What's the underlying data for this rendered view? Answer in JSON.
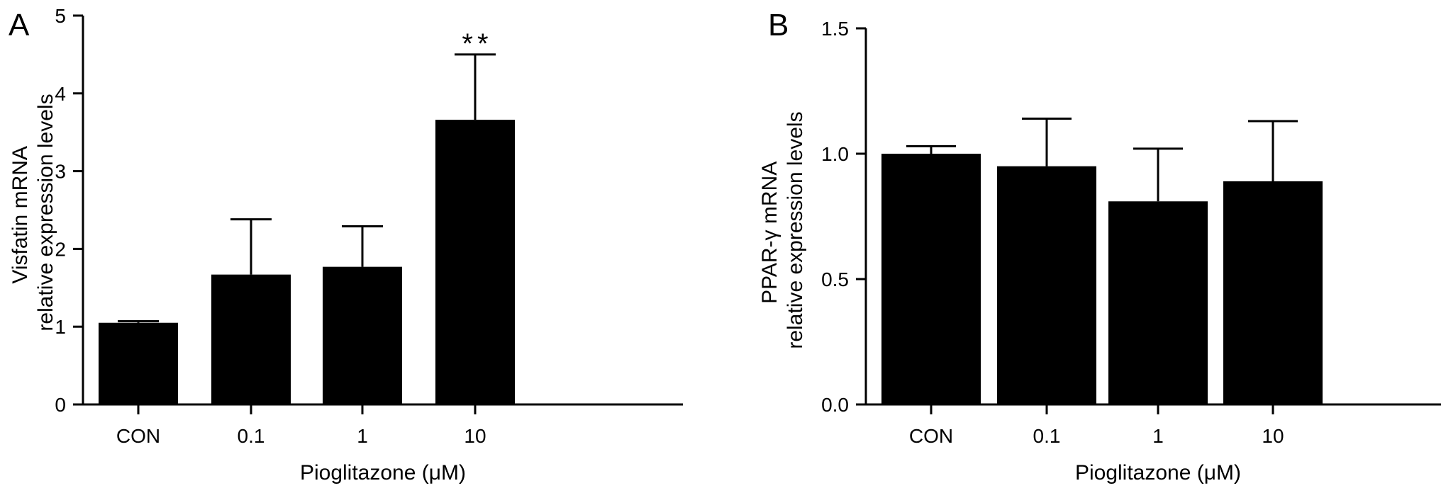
{
  "chart_data": [
    {
      "type": "bar",
      "panel": "A",
      "categories": [
        "CON",
        "0.1",
        "1",
        "10"
      ],
      "series": [
        {
          "values": [
            1.05,
            1.67,
            1.77,
            3.66
          ],
          "errors": [
            0.02,
            0.71,
            0.52,
            0.84
          ]
        }
      ],
      "annotations": [
        {
          "category": "10",
          "text": "**"
        }
      ],
      "xlabel": "Pioglitazone (μM)",
      "ylabel": [
        "Visfatin mRNA",
        "relative expression levels"
      ],
      "ylim": [
        0,
        5
      ],
      "yticks": [
        "0",
        "1",
        "2",
        "3",
        "4",
        "5"
      ],
      "grid": false
    },
    {
      "type": "bar",
      "panel": "B",
      "categories": [
        "CON",
        "0.1",
        "1",
        "10"
      ],
      "series": [
        {
          "values": [
            1.0,
            0.95,
            0.81,
            0.89
          ],
          "errors": [
            0.03,
            0.19,
            0.21,
            0.24
          ]
        }
      ],
      "annotations": [],
      "xlabel": "Pioglitazone (μM)",
      "ylabel": [
        "PPAR-γ mRNA",
        "relative expression levels"
      ],
      "ylim": [
        0,
        1.5
      ],
      "yticks": [
        "0.0",
        "0.5",
        "1.0",
        "1.5"
      ],
      "grid": false
    }
  ],
  "colors": {
    "bar": "#000000",
    "axis": "#000000"
  }
}
